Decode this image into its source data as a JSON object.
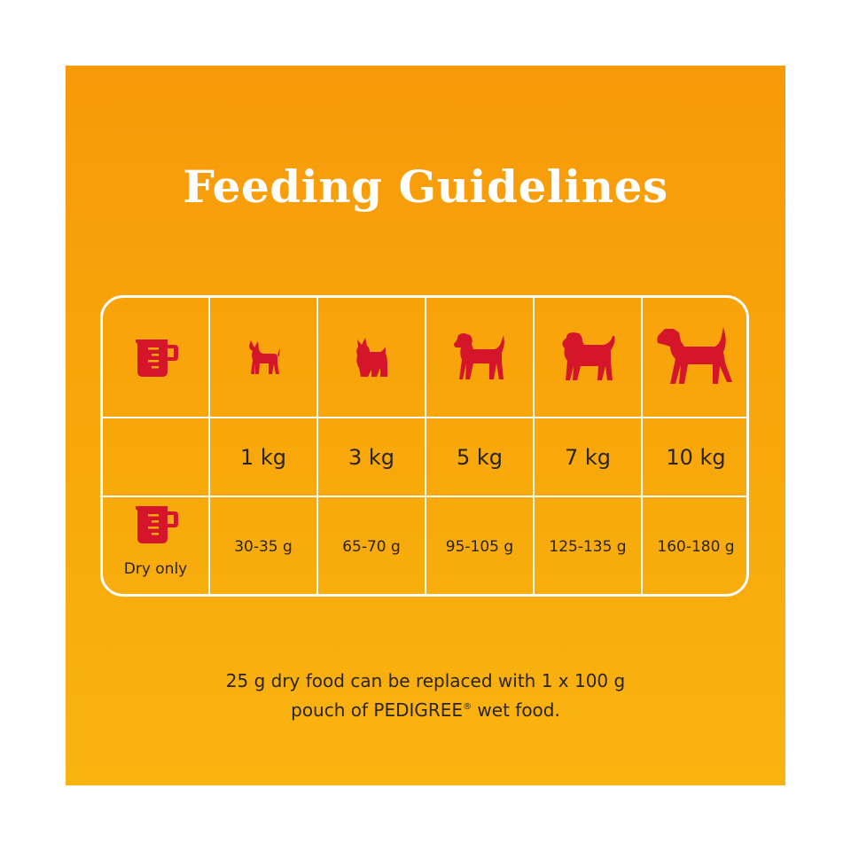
{
  "title": "Feeding Guidelines",
  "colors": {
    "background": "#f8a80b",
    "accent_red": "#d4152a",
    "text_dark": "#2b2420",
    "lines": "#ffffff"
  },
  "table": {
    "header_icons": [
      "measuring-cup-icon",
      "tiny-dog-icon",
      "small-dog-icon",
      "medium-dog-icon",
      "pug-dog-icon",
      "large-dog-icon"
    ],
    "weights": [
      "1 kg",
      "3 kg",
      "5 kg",
      "7 kg",
      "10 kg"
    ],
    "row_label_icon": "measuring-cup-icon",
    "row_label": "Dry only",
    "amounts": [
      "30-35 g",
      "65-70 g",
      "95-105 g",
      "125-135 g",
      "160-180 g"
    ]
  },
  "footnote": {
    "line1": "25 g dry food can be replaced with 1 x 100 g",
    "line2_prefix": "pouch of PEDIGREE",
    "registered_mark": "®",
    "line2_suffix": " wet food."
  }
}
